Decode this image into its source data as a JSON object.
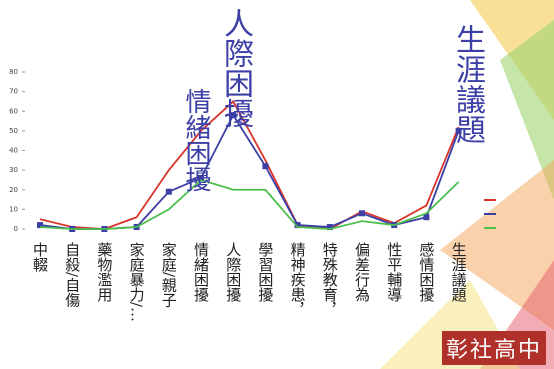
{
  "chart_data": {
    "type": "line",
    "categories": [
      "中輟",
      "自殺/自傷",
      "藥物濫用",
      "家庭暴力/…",
      "家庭/親子",
      "情緒困擾",
      "人際困擾",
      "學習困擾",
      "精神疾患，",
      "特殊教育，",
      "偏差行為",
      "性平輔導",
      "感情困擾",
      "生涯議題"
    ],
    "series": [
      {
        "color": "#d9342b",
        "values": [
          5,
          1,
          0,
          6,
          30,
          50,
          65,
          35,
          2,
          0,
          9,
          3,
          12,
          52
        ]
      },
      {
        "color": "#3b3fa6",
        "marker": "square",
        "values": [
          2,
          0,
          0,
          1,
          19,
          26,
          58,
          32,
          2,
          1,
          8,
          2,
          6,
          50
        ]
      },
      {
        "color": "#4cbf4c",
        "values": [
          1,
          0,
          0,
          1,
          10,
          25,
          20,
          20,
          1,
          0,
          4,
          2,
          8,
          24
        ]
      }
    ],
    "ylim": [
      0,
      80
    ],
    "yticks": [
      0,
      10,
      20,
      30,
      40,
      50,
      60,
      70,
      80
    ],
    "annotations": [
      "人際困擾",
      "情緒困擾",
      "生涯議題"
    ],
    "logo": "彰社高中"
  }
}
